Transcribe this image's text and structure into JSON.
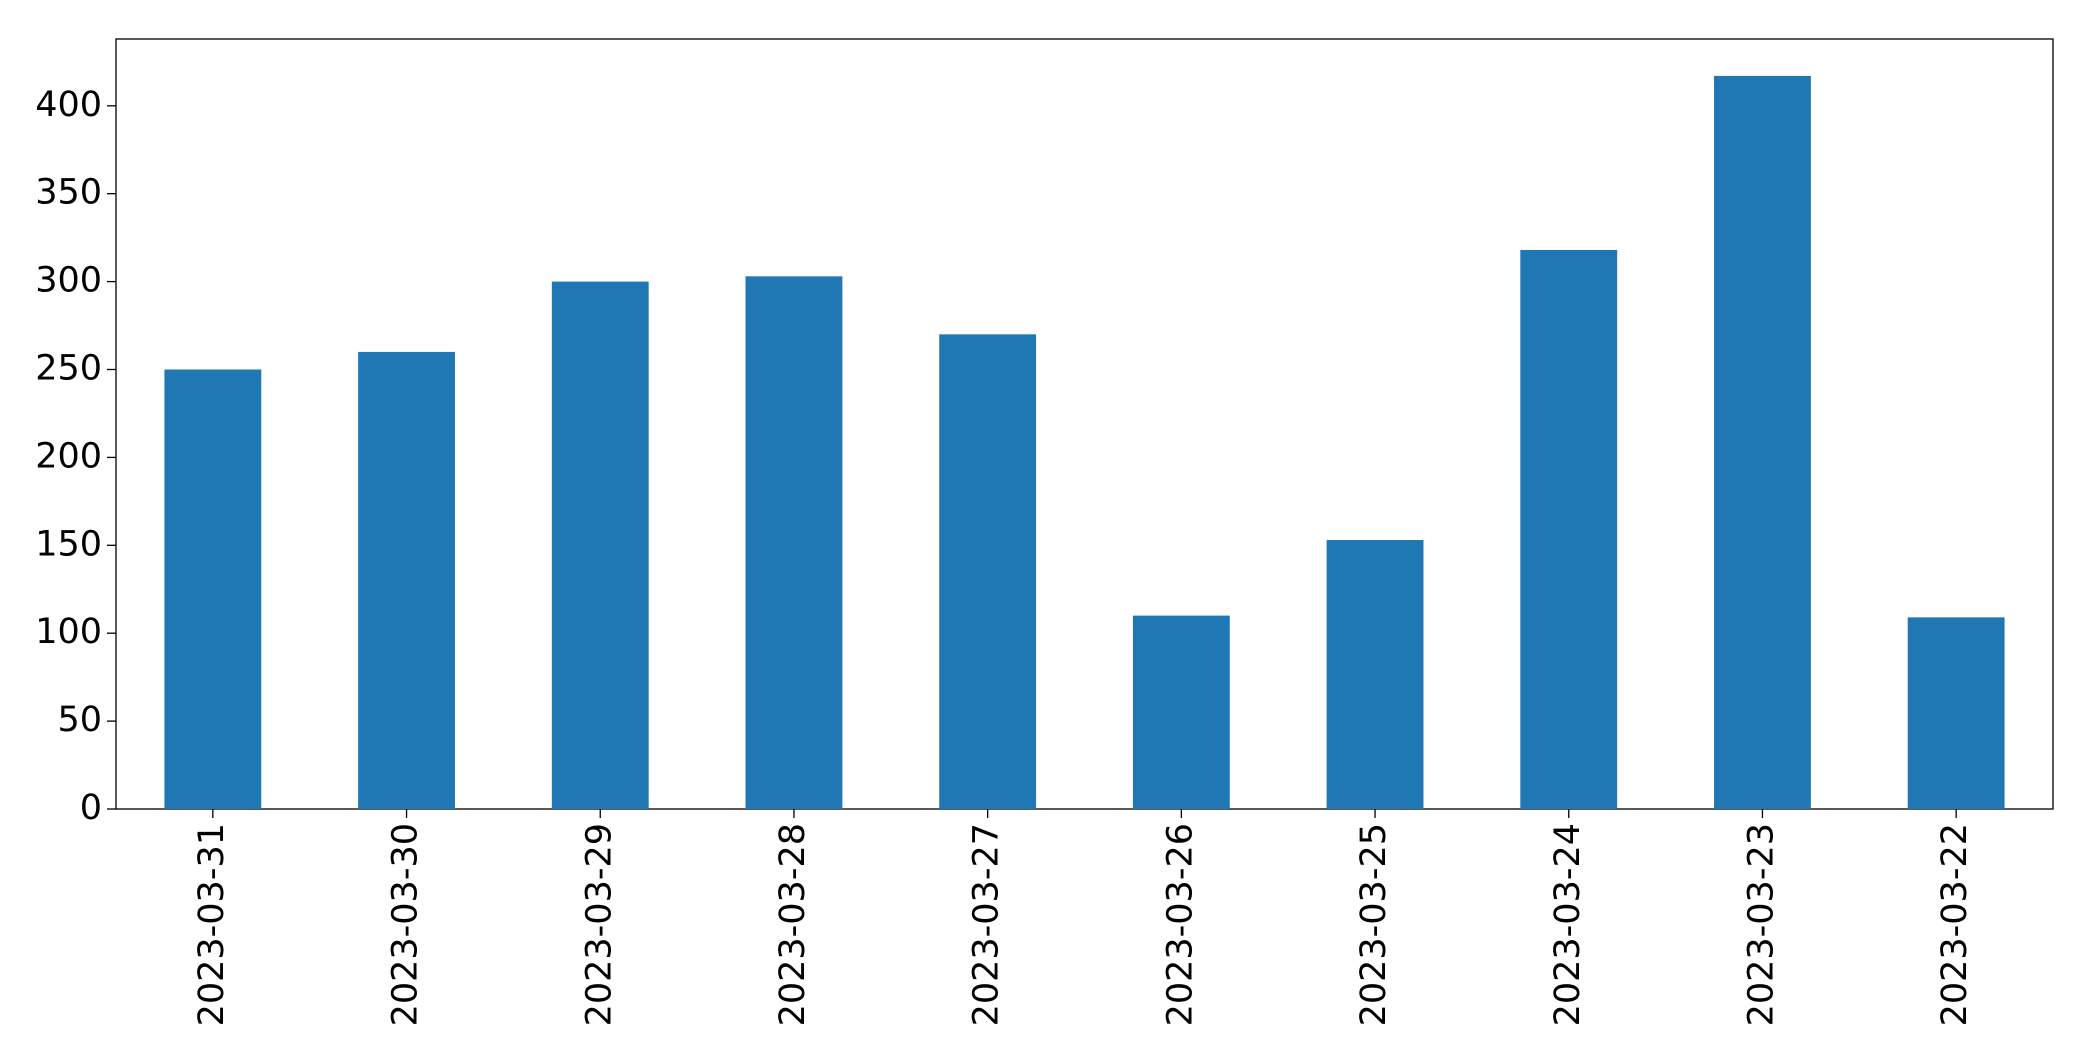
{
  "chart_data": {
    "type": "bar",
    "categories": [
      "2023-03-31",
      "2023-03-30",
      "2023-03-29",
      "2023-03-28",
      "2023-03-27",
      "2023-03-26",
      "2023-03-25",
      "2023-03-24",
      "2023-03-23",
      "2023-03-22"
    ],
    "values": [
      250,
      260,
      300,
      303,
      270,
      110,
      153,
      318,
      417,
      109
    ],
    "color": "#1f77b4",
    "ylim": [
      0,
      438
    ],
    "yticks": [
      0,
      50,
      100,
      150,
      200,
      250,
      300,
      350,
      400
    ],
    "grid": false
  }
}
